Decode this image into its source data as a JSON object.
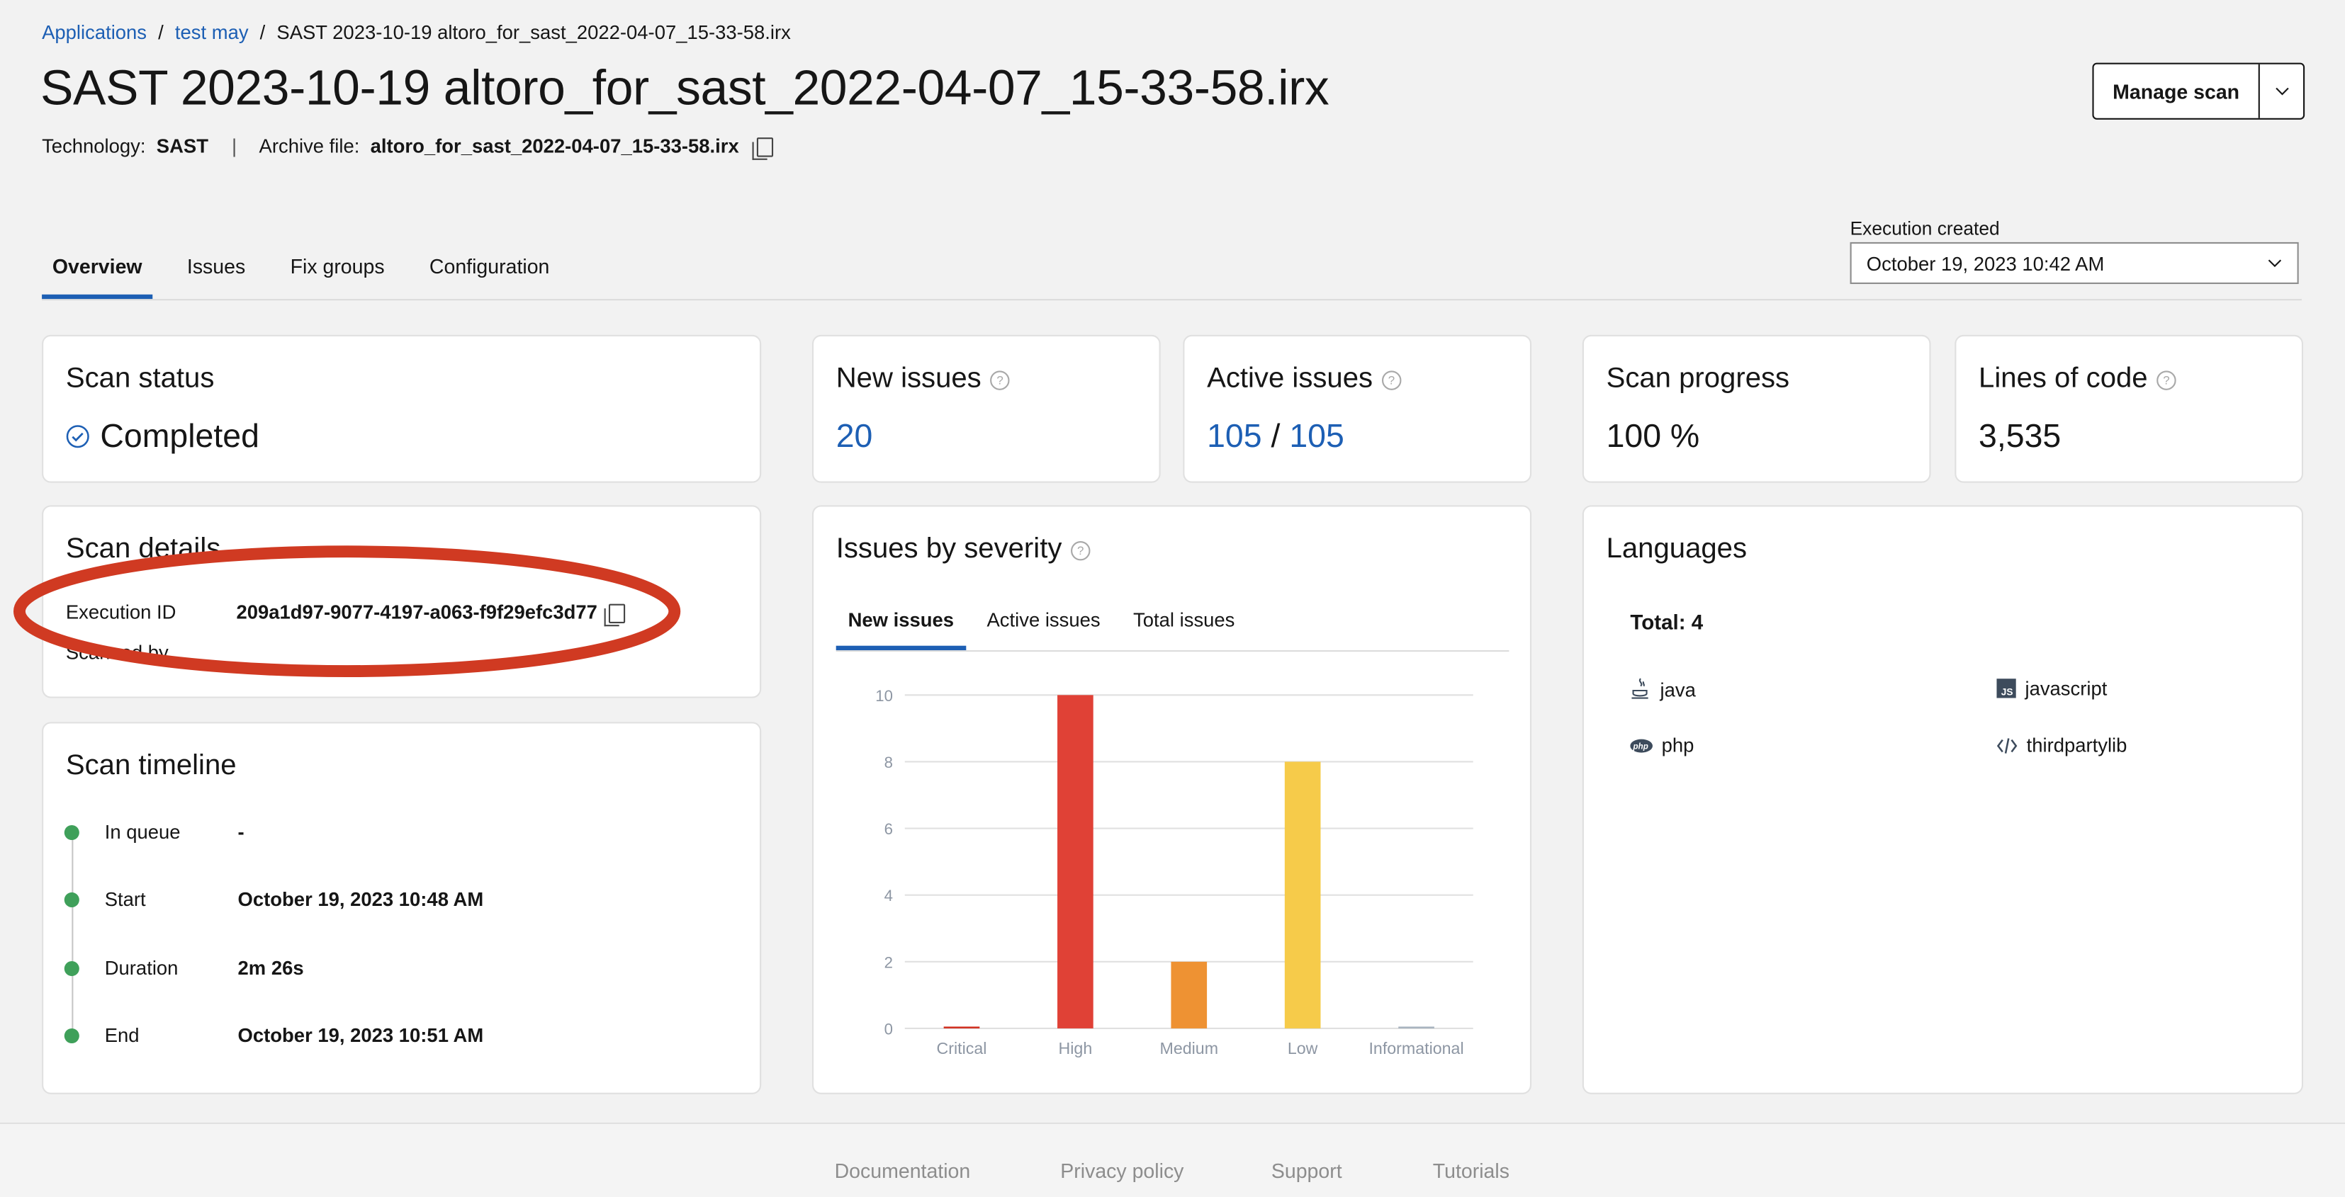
{
  "breadcrumb": {
    "items": [
      "Applications",
      "test may"
    ],
    "current": "SAST 2023-10-19 altoro_for_sast_2022-04-07_15-33-58.irx",
    "separator": "/"
  },
  "header": {
    "title": "SAST 2023-10-19 altoro_for_sast_2022-04-07_15-33-58.irx",
    "technology_label": "Technology:",
    "technology": "SAST",
    "archive_label": "Archive file:",
    "archive": "altoro_for_sast_2022-04-07_15-33-58.irx",
    "manage_scan": "Manage scan"
  },
  "tabs": [
    "Overview",
    "Issues",
    "Fix groups",
    "Configuration"
  ],
  "active_tab": "Overview",
  "execution": {
    "label": "Execution created",
    "value": "October 19, 2023 10:42 AM"
  },
  "scan_status": {
    "title": "Scan status",
    "value": "Completed"
  },
  "new_issues": {
    "title": "New issues",
    "value": "20"
  },
  "active_issues": {
    "title": "Active issues",
    "value": "105",
    "sep": "/",
    "total": "105"
  },
  "scan_progress": {
    "title": "Scan progress",
    "value": "100 %",
    "percent": 100
  },
  "lines_of_code": {
    "title": "Lines of code",
    "value": "3,535"
  },
  "scan_details": {
    "title": "Scan details",
    "execution_id_label": "Execution ID",
    "execution_id": "209a1d97-9077-4197-a063-f9f29efc3d77",
    "scanned_by_label": "Scanned by"
  },
  "scan_timeline": {
    "title": "Scan timeline",
    "items": [
      {
        "label": "In queue",
        "value": "-"
      },
      {
        "label": "Start",
        "value": "October 19, 2023 10:48 AM"
      },
      {
        "label": "Duration",
        "value": "2m 26s"
      },
      {
        "label": "End",
        "value": "October 19, 2023 10:51 AM"
      }
    ]
  },
  "severity": {
    "title": "Issues by severity",
    "tabs": [
      "New issues",
      "Active issues",
      "Total issues"
    ],
    "active_tab": "New issues"
  },
  "chart_data": {
    "type": "bar",
    "categories": [
      "Critical",
      "High",
      "Medium",
      "Low",
      "Informational"
    ],
    "values": [
      0,
      10,
      2,
      8,
      0
    ],
    "colors": [
      "#d12f1f",
      "#e04136",
      "#ee9233",
      "#f6cb4a",
      "#a8b3bf"
    ],
    "ylim": [
      0,
      10
    ],
    "yticks": [
      0,
      2,
      4,
      6,
      8,
      10
    ],
    "grid": true
  },
  "languages": {
    "title": "Languages",
    "total": "Total: 4",
    "items": [
      {
        "name": "java",
        "icon": "java-icon"
      },
      {
        "name": "javascript",
        "icon": "javascript-icon"
      },
      {
        "name": "php",
        "icon": "php-icon"
      },
      {
        "name": "thirdpartylib",
        "icon": "code-icon"
      }
    ]
  },
  "annotation_color": "#d03a22",
  "footer": {
    "links": [
      "Documentation",
      "Privacy policy",
      "Support",
      "Tutorials"
    ]
  }
}
